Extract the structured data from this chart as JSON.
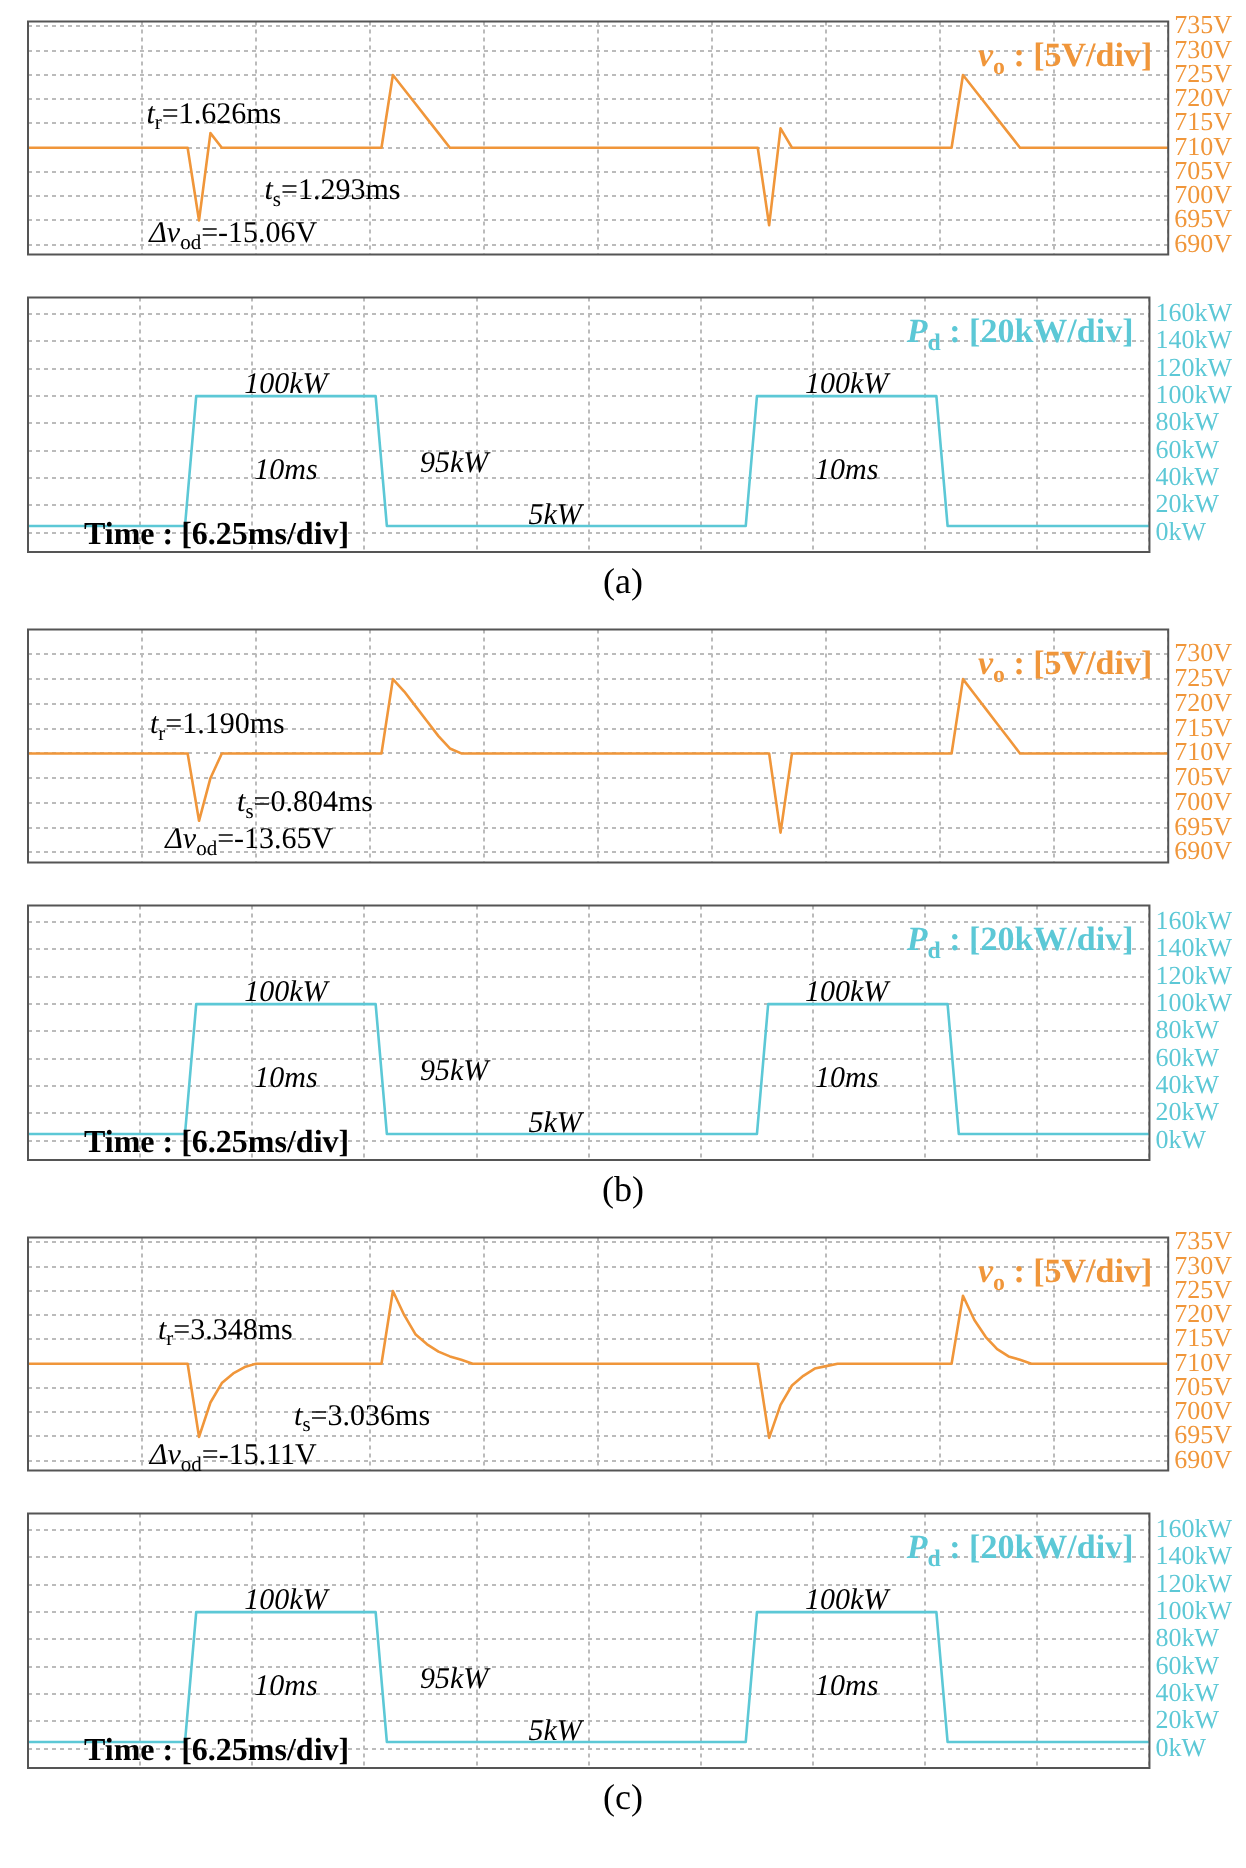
{
  "chart_data": [
    {
      "type": "line",
      "categories": [
        null,
        null,
        null,
        null,
        null,
        null,
        null,
        null,
        null,
        null,
        null,
        null,
        null,
        null,
        null,
        null,
        null,
        null,
        null,
        null,
        null,
        null,
        null,
        null,
        null,
        null,
        null,
        null,
        null,
        null,
        null,
        null,
        null,
        null,
        null,
        null,
        null,
        null,
        null,
        null,
        null,
        null,
        null,
        null,
        null,
        null,
        null,
        null,
        null,
        null,
        null,
        null,
        null,
        null,
        null,
        null,
        null,
        null,
        null,
        null,
        null,
        null,
        null,
        null,
        null,
        null,
        null,
        null,
        null,
        null,
        null,
        null,
        null,
        null,
        null,
        null,
        null,
        null,
        null,
        null,
        null,
        null,
        null,
        null,
        null,
        null,
        null,
        null,
        null,
        null,
        null,
        null,
        null,
        null,
        null,
        null,
        null,
        null,
        null,
        null,
        null
      ],
      "ylim": [
        688,
        736
      ],
      "yticks": [
        {
          "value": 690,
          "label": "690V"
        },
        {
          "value": 695,
          "label": "695V"
        },
        {
          "value": 700,
          "label": "700V"
        },
        {
          "value": 705,
          "label": "705V"
        },
        {
          "value": 710,
          "label": "710V"
        },
        {
          "value": 715,
          "label": "715V"
        },
        {
          "value": 720,
          "label": "720V"
        },
        {
          "value": 725,
          "label": "725V"
        },
        {
          "value": 730,
          "label": "730V"
        },
        {
          "value": 735,
          "label": "735V"
        }
      ],
      "tick_labels": "y",
      "grid": true,
      "series": [
        {
          "name": "v$_{o}$ : [5V/div]",
          "color": "#f0963a",
          "values": [
            710,
            710,
            710,
            710,
            710,
            710,
            710,
            710,
            710,
            710,
            710,
            710,
            710,
            710,
            710,
            695,
            713,
            710,
            710,
            710,
            710,
            710,
            710,
            710,
            710,
            710,
            710,
            710,
            710,
            710,
            710,
            710,
            725,
            722,
            719,
            716,
            713,
            710,
            710,
            710,
            710,
            710,
            710,
            710,
            710,
            710,
            710,
            710,
            710,
            710,
            710,
            710,
            710,
            710,
            710,
            710,
            710,
            710,
            710,
            710,
            710,
            710,
            710,
            710,
            710,
            694,
            714,
            710,
            710,
            710,
            710,
            710,
            710,
            710,
            710,
            710,
            710,
            710,
            710,
            710,
            710,
            710,
            725,
            722,
            719,
            716,
            713,
            710,
            710,
            710,
            710,
            710,
            710,
            710,
            710,
            710,
            710,
            710,
            710,
            710,
            710
          ]
        }
      ],
      "annotations": [
        "t$_{r}$=1.626ms",
        "t$_{s}$=1.293ms",
        "Δv$_{od}$=-15.06V"
      ]
    },
    {
      "type": "line",
      "categories": [
        null,
        null,
        null,
        null,
        null,
        null,
        null,
        null,
        null,
        null,
        null,
        null,
        null,
        null,
        null,
        null,
        null,
        null,
        null,
        null,
        null,
        null,
        null,
        null,
        null,
        null,
        null,
        null,
        null,
        null,
        null,
        null,
        null,
        null,
        null,
        null,
        null,
        null,
        null,
        null,
        null,
        null,
        null,
        null,
        null,
        null,
        null,
        null,
        null,
        null,
        null,
        null,
        null,
        null,
        null,
        null,
        null,
        null,
        null,
        null,
        null,
        null,
        null,
        null,
        null,
        null,
        null,
        null,
        null,
        null,
        null,
        null,
        null,
        null,
        null,
        null,
        null,
        null,
        null,
        null,
        null,
        null,
        null,
        null,
        null,
        null,
        null,
        null,
        null,
        null,
        null,
        null,
        null,
        null,
        null,
        null,
        null,
        null,
        null,
        null,
        null
      ],
      "ylim": [
        -14,
        172
      ],
      "yticks": [
        {
          "value": 0,
          "label": "0kW"
        },
        {
          "value": 20,
          "label": "20kW"
        },
        {
          "value": 40,
          "label": "40kW"
        },
        {
          "value": 60,
          "label": "60kW"
        },
        {
          "value": 80,
          "label": "80kW"
        },
        {
          "value": 100,
          "label": "100kW"
        },
        {
          "value": 120,
          "label": "120kW"
        },
        {
          "value": 140,
          "label": "140kW"
        },
        {
          "value": 160,
          "label": "160kW"
        }
      ],
      "tick_labels": "y",
      "grid": true,
      "xlabel": "Time : [6.25ms/div]",
      "series": [
        {
          "name": "P$_{d}$ : [20kW/div]",
          "color": "#5cc8d6",
          "values": [
            5,
            5,
            5,
            5,
            5,
            5,
            5,
            5,
            5,
            5,
            5,
            5,
            5,
            5,
            5,
            100,
            100,
            100,
            100,
            100,
            100,
            100,
            100,
            100,
            100,
            100,
            100,
            100,
            100,
            100,
            100,
            100,
            5,
            5,
            5,
            5,
            5,
            5,
            5,
            5,
            5,
            5,
            5,
            5,
            5,
            5,
            5,
            5,
            5,
            5,
            5,
            5,
            5,
            5,
            5,
            5,
            5,
            5,
            5,
            5,
            5,
            5,
            5,
            5,
            5,
            100,
            100,
            100,
            100,
            100,
            100,
            100,
            100,
            100,
            100,
            100,
            100,
            100,
            100,
            100,
            100,
            100,
            5,
            5,
            5,
            5,
            5,
            5,
            5,
            5,
            5,
            5,
            5,
            5,
            5,
            5,
            5,
            5,
            5,
            5,
            5
          ]
        }
      ],
      "annotations": [
        "100kW",
        "100kW",
        "10ms",
        "10ms",
        "95kW",
        "5kW",
        "(a)"
      ]
    },
    {
      "type": "line",
      "categories": [
        null,
        null,
        null,
        null,
        null,
        null,
        null,
        null,
        null,
        null,
        null,
        null,
        null,
        null,
        null,
        null,
        null,
        null,
        null,
        null,
        null,
        null,
        null,
        null,
        null,
        null,
        null,
        null,
        null,
        null,
        null,
        null,
        null,
        null,
        null,
        null,
        null,
        null,
        null,
        null,
        null,
        null,
        null,
        null,
        null,
        null,
        null,
        null,
        null,
        null,
        null,
        null,
        null,
        null,
        null,
        null,
        null,
        null,
        null,
        null,
        null,
        null,
        null,
        null,
        null,
        null,
        null,
        null,
        null,
        null,
        null,
        null,
        null,
        null,
        null,
        null,
        null,
        null,
        null,
        null,
        null,
        null,
        null,
        null,
        null,
        null,
        null,
        null,
        null,
        null,
        null,
        null,
        null,
        null,
        null,
        null,
        null,
        null,
        null,
        null,
        null
      ],
      "ylim": [
        688,
        735
      ],
      "yticks": [
        {
          "value": 690,
          "label": "690V"
        },
        {
          "value": 695,
          "label": "695V"
        },
        {
          "value": 700,
          "label": "700V"
        },
        {
          "value": 705,
          "label": "705V"
        },
        {
          "value": 710,
          "label": "710V"
        },
        {
          "value": 715,
          "label": "715V"
        },
        {
          "value": 720,
          "label": "720V"
        },
        {
          "value": 725,
          "label": "725V"
        },
        {
          "value": 730,
          "label": "730V"
        }
      ],
      "tick_labels": "y",
      "grid": true,
      "series": [
        {
          "name": "v$_{o}$ : [5V/div]",
          "color": "#f0963a",
          "values": [
            710,
            710,
            710,
            710,
            710,
            710,
            710,
            710,
            710,
            710,
            710,
            710,
            710,
            710,
            710,
            696.4,
            705,
            710,
            710,
            710,
            710,
            710,
            710,
            710,
            710,
            710,
            710,
            710,
            710,
            710,
            710,
            710,
            725,
            722.5,
            719.5,
            716.5,
            713.5,
            711,
            710,
            710,
            710,
            710,
            710,
            710,
            710,
            710,
            710,
            710,
            710,
            710,
            710,
            710,
            710,
            710,
            710,
            710,
            710,
            710,
            710,
            710,
            710,
            710,
            710,
            710,
            710,
            710,
            694,
            710,
            710,
            710,
            710,
            710,
            710,
            710,
            710,
            710,
            710,
            710,
            710,
            710,
            710,
            710,
            725,
            722,
            719,
            716,
            713,
            710,
            710,
            710,
            710,
            710,
            710,
            710,
            710,
            710,
            710,
            710,
            710,
            710,
            710
          ]
        }
      ],
      "annotations": [
        "t$_{r}$=1.190ms",
        "t$_{s}$=0.804ms",
        "Δv$_{od}$=-13.65V"
      ]
    },
    {
      "type": "line",
      "categories": [
        null,
        null,
        null,
        null,
        null,
        null,
        null,
        null,
        null,
        null,
        null,
        null,
        null,
        null,
        null,
        null,
        null,
        null,
        null,
        null,
        null,
        null,
        null,
        null,
        null,
        null,
        null,
        null,
        null,
        null,
        null,
        null,
        null,
        null,
        null,
        null,
        null,
        null,
        null,
        null,
        null,
        null,
        null,
        null,
        null,
        null,
        null,
        null,
        null,
        null,
        null,
        null,
        null,
        null,
        null,
        null,
        null,
        null,
        null,
        null,
        null,
        null,
        null,
        null,
        null,
        null,
        null,
        null,
        null,
        null,
        null,
        null,
        null,
        null,
        null,
        null,
        null,
        null,
        null,
        null,
        null,
        null,
        null,
        null,
        null,
        null,
        null,
        null,
        null,
        null,
        null,
        null,
        null,
        null,
        null,
        null,
        null,
        null,
        null,
        null,
        null
      ],
      "ylim": [
        -14,
        172
      ],
      "yticks": [
        {
          "value": 0,
          "label": "0kW"
        },
        {
          "value": 20,
          "label": "20kW"
        },
        {
          "value": 40,
          "label": "40kW"
        },
        {
          "value": 60,
          "label": "60kW"
        },
        {
          "value": 80,
          "label": "80kW"
        },
        {
          "value": 100,
          "label": "100kW"
        },
        {
          "value": 120,
          "label": "120kW"
        },
        {
          "value": 140,
          "label": "140kW"
        },
        {
          "value": 160,
          "label": "160kW"
        }
      ],
      "tick_labels": "y",
      "grid": true,
      "xlabel": "Time : [6.25ms/div]",
      "series": [
        {
          "name": "P$_{d}$ : [20kW/div]",
          "color": "#5cc8d6",
          "values": [
            5,
            5,
            5,
            5,
            5,
            5,
            5,
            5,
            5,
            5,
            5,
            5,
            5,
            5,
            5,
            100,
            100,
            100,
            100,
            100,
            100,
            100,
            100,
            100,
            100,
            100,
            100,
            100,
            100,
            100,
            100,
            100,
            5,
            5,
            5,
            5,
            5,
            5,
            5,
            5,
            5,
            5,
            5,
            5,
            5,
            5,
            5,
            5,
            5,
            5,
            5,
            5,
            5,
            5,
            5,
            5,
            5,
            5,
            5,
            5,
            5,
            5,
            5,
            5,
            5,
            5,
            100,
            100,
            100,
            100,
            100,
            100,
            100,
            100,
            100,
            100,
            100,
            100,
            100,
            100,
            100,
            100,
            100,
            5,
            5,
            5,
            5,
            5,
            5,
            5,
            5,
            5,
            5,
            5,
            5,
            5,
            5,
            5,
            5,
            5,
            5
          ]
        }
      ],
      "annotations": [
        "100kW",
        "100kW",
        "10ms",
        "10ms",
        "95kW",
        "5kW",
        "(b)"
      ]
    },
    {
      "type": "line",
      "categories": [
        null,
        null,
        null,
        null,
        null,
        null,
        null,
        null,
        null,
        null,
        null,
        null,
        null,
        null,
        null,
        null,
        null,
        null,
        null,
        null,
        null,
        null,
        null,
        null,
        null,
        null,
        null,
        null,
        null,
        null,
        null,
        null,
        null,
        null,
        null,
        null,
        null,
        null,
        null,
        null,
        null,
        null,
        null,
        null,
        null,
        null,
        null,
        null,
        null,
        null,
        null,
        null,
        null,
        null,
        null,
        null,
        null,
        null,
        null,
        null,
        null,
        null,
        null,
        null,
        null,
        null,
        null,
        null,
        null,
        null,
        null,
        null,
        null,
        null,
        null,
        null,
        null,
        null,
        null,
        null,
        null,
        null,
        null,
        null,
        null,
        null,
        null,
        null,
        null,
        null,
        null,
        null,
        null,
        null,
        null,
        null,
        null,
        null,
        null,
        null,
        null
      ],
      "ylim": [
        688,
        736
      ],
      "yticks": [
        {
          "value": 690,
          "label": "690V"
        },
        {
          "value": 695,
          "label": "695V"
        },
        {
          "value": 700,
          "label": "700V"
        },
        {
          "value": 705,
          "label": "705V"
        },
        {
          "value": 710,
          "label": "710V"
        },
        {
          "value": 715,
          "label": "715V"
        },
        {
          "value": 720,
          "label": "720V"
        },
        {
          "value": 725,
          "label": "725V"
        },
        {
          "value": 730,
          "label": "730V"
        },
        {
          "value": 735,
          "label": "735V"
        }
      ],
      "tick_labels": "y",
      "grid": true,
      "series": [
        {
          "name": "v$_{o}$ : [5V/div]",
          "color": "#f0963a",
          "values": [
            710,
            710,
            710,
            710,
            710,
            710,
            710,
            710,
            710,
            710,
            710,
            710,
            710,
            710,
            710,
            694.9,
            702,
            706,
            708,
            709.3,
            710,
            710,
            710,
            710,
            710,
            710,
            710,
            710,
            710,
            710,
            710,
            710,
            725,
            720,
            716,
            714,
            712.5,
            711.5,
            710.8,
            710,
            710,
            710,
            710,
            710,
            710,
            710,
            710,
            710,
            710,
            710,
            710,
            710,
            710,
            710,
            710,
            710,
            710,
            710,
            710,
            710,
            710,
            710,
            710,
            710,
            710,
            694.7,
            701.5,
            705.5,
            707.5,
            709,
            709.5,
            710,
            710,
            710,
            710,
            710,
            710,
            710,
            710,
            710,
            710,
            710,
            724,
            719,
            715.5,
            713,
            711.5,
            710.8,
            710,
            710,
            710,
            710,
            710,
            710,
            710,
            710,
            710,
            710,
            710,
            710,
            710
          ]
        }
      ],
      "annotations": [
        "t$_{r}$=3.348ms",
        "t$_{s}$=3.036ms",
        "Δv$_{od}$=-15.11V"
      ]
    },
    {
      "type": "line",
      "categories": [
        null,
        null,
        null,
        null,
        null,
        null,
        null,
        null,
        null,
        null,
        null,
        null,
        null,
        null,
        null,
        null,
        null,
        null,
        null,
        null,
        null,
        null,
        null,
        null,
        null,
        null,
        null,
        null,
        null,
        null,
        null,
        null,
        null,
        null,
        null,
        null,
        null,
        null,
        null,
        null,
        null,
        null,
        null,
        null,
        null,
        null,
        null,
        null,
        null,
        null,
        null,
        null,
        null,
        null,
        null,
        null,
        null,
        null,
        null,
        null,
        null,
        null,
        null,
        null,
        null,
        null,
        null,
        null,
        null,
        null,
        null,
        null,
        null,
        null,
        null,
        null,
        null,
        null,
        null,
        null,
        null,
        null,
        null,
        null,
        null,
        null,
        null,
        null,
        null,
        null,
        null,
        null,
        null,
        null,
        null,
        null,
        null,
        null,
        null,
        null,
        null
      ],
      "ylim": [
        -14,
        172
      ],
      "yticks": [
        {
          "value": 0,
          "label": "0kW"
        },
        {
          "value": 20,
          "label": "20kW"
        },
        {
          "value": 40,
          "label": "40kW"
        },
        {
          "value": 60,
          "label": "60kW"
        },
        {
          "value": 80,
          "label": "80kW"
        },
        {
          "value": 100,
          "label": "100kW"
        },
        {
          "value": 120,
          "label": "120kW"
        },
        {
          "value": 140,
          "label": "140kW"
        },
        {
          "value": 160,
          "label": "160kW"
        }
      ],
      "tick_labels": "y",
      "grid": true,
      "xlabel": "Time : [6.25ms/div]",
      "series": [
        {
          "name": "P$_{d}$ : [20kW/div]",
          "color": "#5cc8d6",
          "values": [
            5,
            5,
            5,
            5,
            5,
            5,
            5,
            5,
            5,
            5,
            5,
            5,
            5,
            5,
            5,
            100,
            100,
            100,
            100,
            100,
            100,
            100,
            100,
            100,
            100,
            100,
            100,
            100,
            100,
            100,
            100,
            100,
            5,
            5,
            5,
            5,
            5,
            5,
            5,
            5,
            5,
            5,
            5,
            5,
            5,
            5,
            5,
            5,
            5,
            5,
            5,
            5,
            5,
            5,
            5,
            5,
            5,
            5,
            5,
            5,
            5,
            5,
            5,
            5,
            5,
            100,
            100,
            100,
            100,
            100,
            100,
            100,
            100,
            100,
            100,
            100,
            100,
            100,
            100,
            100,
            100,
            100,
            5,
            5,
            5,
            5,
            5,
            5,
            5,
            5,
            5,
            5,
            5,
            5,
            5,
            5,
            5,
            5,
            5,
            5,
            5
          ]
        }
      ],
      "annotations": [
        "100kW",
        "100kW",
        "10ms",
        "10ms",
        "95kW",
        "5kW",
        "(c)"
      ]
    }
  ]
}
